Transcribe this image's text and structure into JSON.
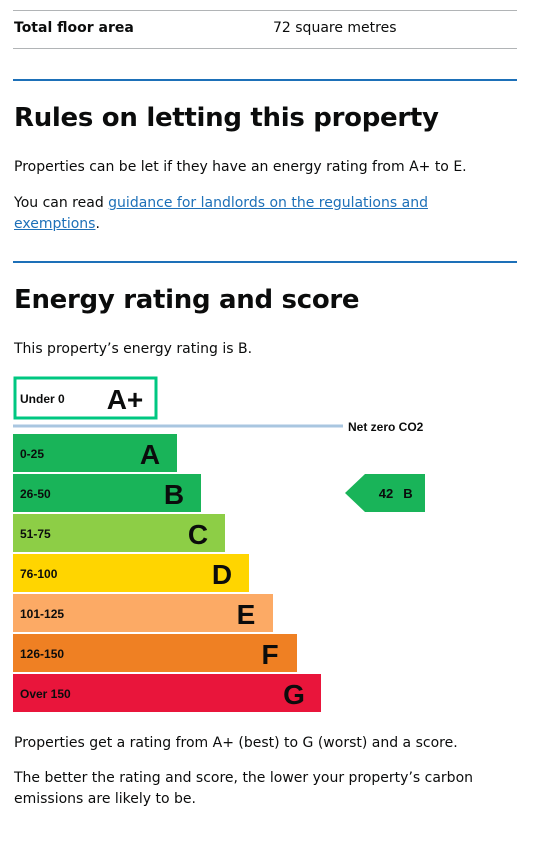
{
  "summary": {
    "key": "Total floor area",
    "value": "72 square metres"
  },
  "letting": {
    "heading": "Rules on letting this property",
    "paragraph": "Properties can be let if they have an energy rating from A+ to E.",
    "guidance_prefix": "You can read ",
    "guidance_link": "guidance for landlords on the regulations and exemptions",
    "guidance_suffix": "."
  },
  "energy": {
    "heading": "Energy rating and score",
    "intro": "This property’s energy rating is B.",
    "footer_1": "Properties get a rating from A+ (best) to G (worst) and a score.",
    "footer_2": "The better the rating and score, the lower your property’s carbon emissions are likely to be."
  },
  "chart_data": {
    "type": "bar",
    "title": "",
    "bands": [
      {
        "letter": "A+",
        "range": "Under 0",
        "color": "#00c781",
        "outlined": true
      },
      {
        "letter": "A",
        "range": "0-25",
        "color": "#19b459"
      },
      {
        "letter": "B",
        "range": "26-50",
        "color": "#19b459"
      },
      {
        "letter": "C",
        "range": "51-75",
        "color": "#8dce46"
      },
      {
        "letter": "D",
        "range": "76-100",
        "color": "#ffd500"
      },
      {
        "letter": "E",
        "range": "101-125",
        "color": "#fcaa65"
      },
      {
        "letter": "F",
        "range": "126-150",
        "color": "#ef8023"
      },
      {
        "letter": "G",
        "range": "Over 150",
        "color": "#e9153b"
      }
    ],
    "net_zero_label": "Net zero CO2",
    "net_zero_line_color": "#a9c6e0",
    "current": {
      "score": "42",
      "letter": "B",
      "color": "#19b459"
    }
  }
}
